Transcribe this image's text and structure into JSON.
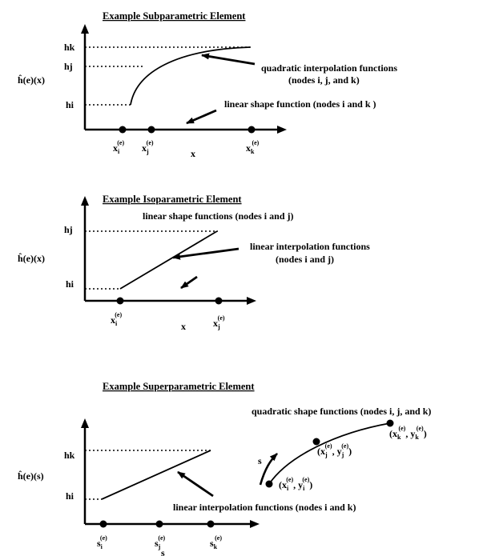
{
  "panels": {
    "sub": {
      "title": "Example Subparametric Element",
      "y_axis_label": "ĥ(e)(x)",
      "y_ticks": [
        "hk",
        "hj",
        "hi"
      ],
      "x_axis_label": "x",
      "x_nodes": [
        {
          "base": "x",
          "sub": "i",
          "sup": "(e)"
        },
        {
          "base": "x",
          "sub": "j",
          "sup": "(e)"
        },
        {
          "base": "x",
          "sub": "k",
          "sup": "(e)"
        }
      ],
      "annotation_1_line1": "quadratic interpolation functions",
      "annotation_1_line2": "(nodes i, j, and k)",
      "annotation_2": "linear shape function (nodes i and k )"
    },
    "iso": {
      "title": "Example Isoparametric Element",
      "y_axis_label": "ĥ(e)(x)",
      "y_ticks": [
        "hj",
        "hi"
      ],
      "x_axis_label": "x",
      "x_nodes": [
        {
          "base": "x",
          "sub": "i",
          "sup": "(e)"
        },
        {
          "base": "x",
          "sub": "j",
          "sup": "(e)"
        }
      ],
      "annotation_1": "linear shape functions (nodes i and j)",
      "annotation_2_line1": "linear interpolation functions",
      "annotation_2_line2": "(nodes i and j)"
    },
    "super": {
      "title": "Example Superparametric Element",
      "y_axis_label": "ĥ(e)(s)",
      "y_ticks": [
        "hk",
        "hi"
      ],
      "x_axis_label": "s",
      "x_nodes": [
        {
          "base": "s",
          "sub": "i",
          "sup": "(e)"
        },
        {
          "base": "s",
          "sub": "j",
          "sup": "(e)"
        },
        {
          "base": "s",
          "sub": "k",
          "sup": "(e)"
        }
      ],
      "curve_label": "s",
      "annotation_1": "quadratic shape functions (nodes i, j, and k)",
      "annotation_2": "linear interpolation functions (nodes i and k)",
      "points": [
        {
          "x_sub": "i",
          "y_sub": "i"
        },
        {
          "x_sub": "j",
          "y_sub": "j"
        },
        {
          "x_sub": "k",
          "y_sub": "k"
        }
      ]
    }
  }
}
